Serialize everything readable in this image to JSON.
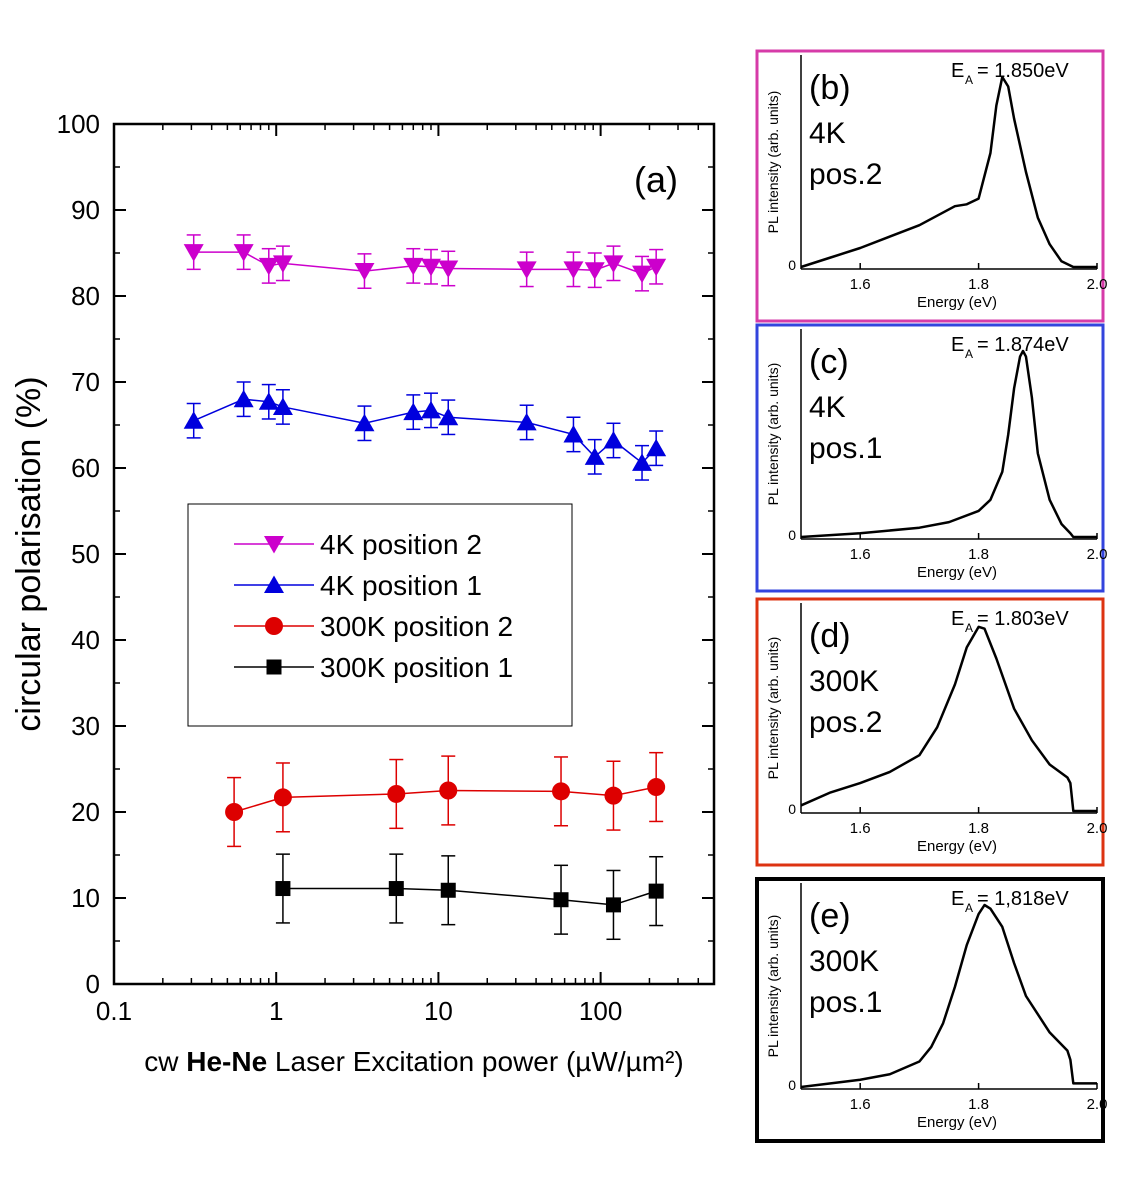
{
  "chart_data": [
    {
      "panel": "(a)",
      "type": "scatter",
      "xscale": "log",
      "xlim": [
        0.1,
        500
      ],
      "ylim": [
        0,
        100
      ],
      "xticks": [
        "0.1",
        "1",
        "10",
        "100"
      ],
      "yticks": [
        "0",
        "10",
        "20",
        "30",
        "40",
        "50",
        "60",
        "70",
        "80",
        "90",
        "100"
      ],
      "xlabel": {
        "pre": "cw ",
        "bold": "He-Ne",
        "post": " Laser Excitation power (µW/µm²)"
      },
      "ylabel": "circular polarisation (%)",
      "legend_position": "center-left",
      "series": [
        {
          "name": "4K position 2",
          "color": "#cc00cc",
          "marker": "triangle-down",
          "x": [
            0.31,
            0.63,
            0.9,
            1.1,
            3.5,
            7.0,
            9.0,
            11.5,
            35,
            68,
            92,
            120,
            180,
            220
          ],
          "y": [
            85.1,
            85.1,
            83.5,
            83.8,
            82.9,
            83.5,
            83.4,
            83.2,
            83.1,
            83.1,
            83.0,
            83.8,
            82.6,
            83.4
          ],
          "err": [
            2,
            2,
            2,
            2,
            2,
            2,
            2,
            2,
            2,
            2,
            2,
            2,
            2,
            2
          ]
        },
        {
          "name": "4K position 1",
          "color": "#0000dd",
          "marker": "triangle-up",
          "x": [
            0.31,
            0.63,
            0.9,
            1.1,
            3.5,
            7.0,
            9.0,
            11.5,
            35,
            68,
            92,
            120,
            180,
            220
          ],
          "y": [
            65.5,
            68.0,
            67.7,
            67.1,
            65.2,
            66.5,
            66.7,
            65.9,
            65.3,
            63.9,
            61.3,
            63.2,
            60.6,
            62.3
          ],
          "err": [
            2,
            2,
            2,
            2,
            2,
            2,
            2,
            2,
            2,
            2,
            2,
            2,
            2,
            2
          ]
        },
        {
          "name": "300K position 2",
          "color": "#dd0000",
          "marker": "circle",
          "x": [
            0.55,
            1.1,
            5.5,
            11.5,
            57,
            120,
            220
          ],
          "y": [
            20.0,
            21.7,
            22.1,
            22.5,
            22.4,
            21.9,
            22.9
          ],
          "err": [
            4,
            4,
            4,
            4,
            4,
            4,
            4
          ]
        },
        {
          "name": "300K position 1",
          "color": "#000000",
          "marker": "square",
          "x": [
            1.1,
            5.5,
            11.5,
            57,
            120,
            220
          ],
          "y": [
            11.1,
            11.1,
            10.9,
            9.8,
            9.2,
            10.8
          ],
          "err": [
            4,
            4,
            4,
            4,
            4,
            4
          ]
        }
      ]
    },
    {
      "panel": "(b)",
      "type": "line",
      "border_color": "#d63ba8",
      "temp": "4K",
      "pos": "pos.2",
      "peak_label": "= 1.850eV",
      "xlim": [
        1.5,
        2.0
      ],
      "xticks": [
        "1.6",
        "1.8",
        "2.0"
      ],
      "ytick": "0",
      "xlabel": "Energy (eV)",
      "ylabel": "PL intensity (arb. units)",
      "x": [
        1.5,
        1.55,
        1.6,
        1.65,
        1.7,
        1.73,
        1.76,
        1.78,
        1.8,
        1.82,
        1.83,
        1.84,
        1.85,
        1.86,
        1.88,
        1.9,
        1.92,
        1.94,
        1.96,
        1.97,
        2.0
      ],
      "y": [
        0.0,
        0.05,
        0.1,
        0.16,
        0.22,
        0.27,
        0.32,
        0.33,
        0.36,
        0.6,
        0.85,
        1.0,
        0.95,
        0.78,
        0.5,
        0.26,
        0.12,
        0.03,
        0.0,
        0.0,
        0.0
      ]
    },
    {
      "panel": "(c)",
      "type": "line",
      "border_color": "#3344dd",
      "temp": "4K",
      "pos": "pos.1",
      "peak_label": "= 1.874eV",
      "xlim": [
        1.5,
        2.0
      ],
      "xticks": [
        "1.6",
        "1.8",
        "2.0"
      ],
      "ytick": "0",
      "xlabel": "Energy (eV)",
      "ylabel": "PL intensity (arb. units)",
      "x": [
        1.5,
        1.6,
        1.7,
        1.75,
        1.8,
        1.82,
        1.84,
        1.85,
        1.86,
        1.87,
        1.875,
        1.88,
        1.89,
        1.9,
        1.92,
        1.94,
        1.955,
        1.96,
        2.0
      ],
      "y": [
        0.0,
        0.02,
        0.05,
        0.08,
        0.14,
        0.2,
        0.35,
        0.55,
        0.8,
        0.97,
        1.0,
        0.97,
        0.75,
        0.45,
        0.2,
        0.07,
        0.02,
        0.0,
        0.0
      ]
    },
    {
      "panel": "(d)",
      "type": "line",
      "border_color": "#dd3311",
      "temp": "300K",
      "pos": "pos.2",
      "peak_label": "= 1.803eV",
      "xlim": [
        1.5,
        2.0
      ],
      "xticks": [
        "1.6",
        "1.8",
        "2.0"
      ],
      "ytick": "0",
      "xlabel": "Energy (eV)",
      "ylabel": "PL intensity (arb. units)",
      "x": [
        1.5,
        1.55,
        1.6,
        1.65,
        1.7,
        1.73,
        1.76,
        1.78,
        1.8,
        1.81,
        1.83,
        1.86,
        1.89,
        1.92,
        1.95,
        1.955,
        1.96,
        2.0
      ],
      "y": [
        0.03,
        0.1,
        0.15,
        0.21,
        0.3,
        0.45,
        0.68,
        0.88,
        0.99,
        0.98,
        0.82,
        0.55,
        0.38,
        0.25,
        0.18,
        0.15,
        0.0,
        0.0
      ]
    },
    {
      "panel": "(e)",
      "type": "line",
      "border_color": "#000000",
      "temp": "300K",
      "pos": "pos.1",
      "peak_label": "= 1,818eV",
      "xlim": [
        1.5,
        2.0
      ],
      "xticks": [
        "1.6",
        "1.8",
        "2.0"
      ],
      "ytick": "0",
      "xlabel": "Energy (eV)",
      "ylabel": "PL intensity (arb. units)",
      "x": [
        1.5,
        1.55,
        1.6,
        1.65,
        1.7,
        1.72,
        1.74,
        1.76,
        1.78,
        1.8,
        1.81,
        1.82,
        1.84,
        1.86,
        1.88,
        1.9,
        1.92,
        1.95,
        1.955,
        1.96,
        2.0
      ],
      "y": [
        0.0,
        0.02,
        0.04,
        0.07,
        0.14,
        0.22,
        0.35,
        0.55,
        0.78,
        0.95,
        1.0,
        0.98,
        0.88,
        0.68,
        0.5,
        0.4,
        0.3,
        0.2,
        0.15,
        0.02,
        0.02
      ]
    }
  ]
}
